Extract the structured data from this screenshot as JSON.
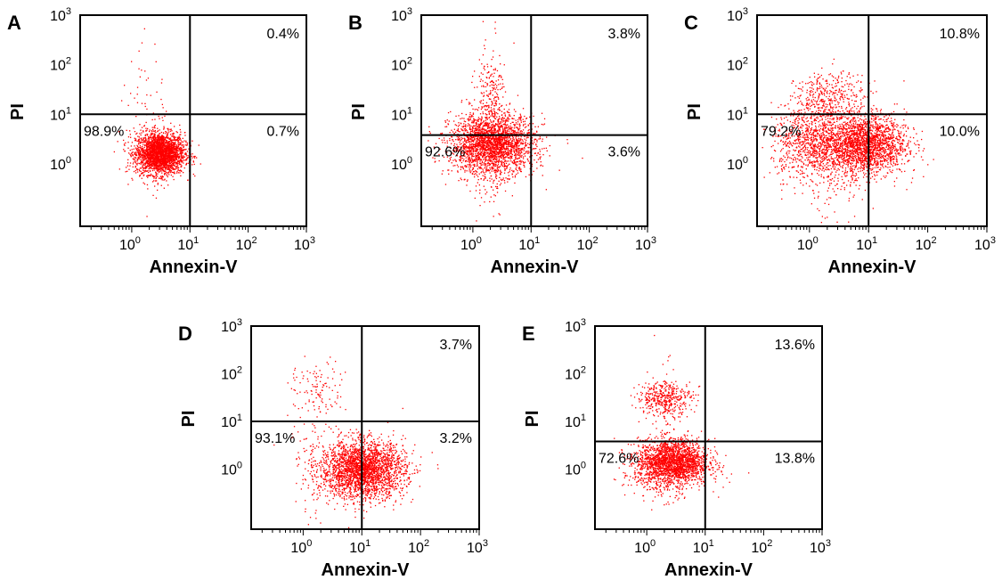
{
  "chart_data": [
    {
      "type": "scatter",
      "panel_label": "A",
      "xlabel": "Annexin-V",
      "ylabel": "PI",
      "x_scale": "log",
      "y_scale": "log",
      "xlim": [
        0.13,
        1000
      ],
      "ylim": [
        0.055,
        1000
      ],
      "x_ticks": [
        "10^0",
        "10^1",
        "10^2",
        "10^3"
      ],
      "y_ticks": [
        "10^0",
        "10^1",
        "10^2",
        "10^3"
      ],
      "quadrant_gate": {
        "x": 10,
        "y": 10
      },
      "quadrants": {
        "upper_right": "0.4%",
        "lower_left": "98.9%",
        "lower_right": "0.7%"
      },
      "point_color": "#ff0000"
    },
    {
      "type": "scatter",
      "panel_label": "B",
      "xlabel": "Annexin-V",
      "ylabel": "PI",
      "x_scale": "log",
      "y_scale": "log",
      "xlim": [
        0.13,
        1000
      ],
      "ylim": [
        0.055,
        1000
      ],
      "x_ticks": [
        "10^0",
        "10^1",
        "10^2",
        "10^3"
      ],
      "y_ticks": [
        "10^0",
        "10^1",
        "10^2",
        "10^3"
      ],
      "quadrant_gate": {
        "x": 10,
        "y": 3.8
      },
      "quadrants": {
        "upper_right": "3.8%",
        "lower_left": "92.6%",
        "lower_right": "3.6%"
      },
      "point_color": "#ff0000"
    },
    {
      "type": "scatter",
      "panel_label": "C",
      "xlabel": "Annexin-V",
      "ylabel": "PI",
      "x_scale": "log",
      "y_scale": "log",
      "xlim": [
        0.13,
        1000
      ],
      "ylim": [
        0.055,
        1000
      ],
      "x_ticks": [
        "10^0",
        "10^1",
        "10^2",
        "10^3"
      ],
      "y_ticks": [
        "10^0",
        "10^1",
        "10^2",
        "10^3"
      ],
      "quadrant_gate": {
        "x": 10,
        "y": 10
      },
      "quadrants": {
        "upper_right": "10.8%",
        "lower_left": "79.2%",
        "lower_right": "10.0%"
      },
      "point_color": "#ff0000"
    },
    {
      "type": "scatter",
      "panel_label": "D",
      "xlabel": "Annexin-V",
      "ylabel": "PI",
      "x_scale": "log",
      "y_scale": "log",
      "xlim": [
        0.13,
        1000
      ],
      "ylim": [
        0.055,
        1000
      ],
      "x_ticks": [
        "10^0",
        "10^1",
        "10^2",
        "10^3"
      ],
      "y_ticks": [
        "10^0",
        "10^1",
        "10^2",
        "10^3"
      ],
      "quadrant_gate": {
        "x": 10,
        "y": 10
      },
      "quadrants": {
        "upper_right": "3.7%",
        "lower_left": "93.1%",
        "lower_right": "3.2%"
      },
      "point_color": "#ff0000"
    },
    {
      "type": "scatter",
      "panel_label": "E",
      "xlabel": "Annexin-V",
      "ylabel": "PI",
      "x_scale": "log",
      "y_scale": "log",
      "xlim": [
        0.13,
        1000
      ],
      "ylim": [
        0.055,
        1000
      ],
      "x_ticks": [
        "10^0",
        "10^1",
        "10^2",
        "10^3"
      ],
      "y_ticks": [
        "10^0",
        "10^1",
        "10^2",
        "10^3"
      ],
      "quadrant_gate": {
        "x": 10,
        "y": 3.8
      },
      "quadrants": {
        "upper_right": "13.6%",
        "lower_left": "72.6%",
        "lower_right": "13.8%"
      },
      "point_color": "#ff0000"
    }
  ]
}
